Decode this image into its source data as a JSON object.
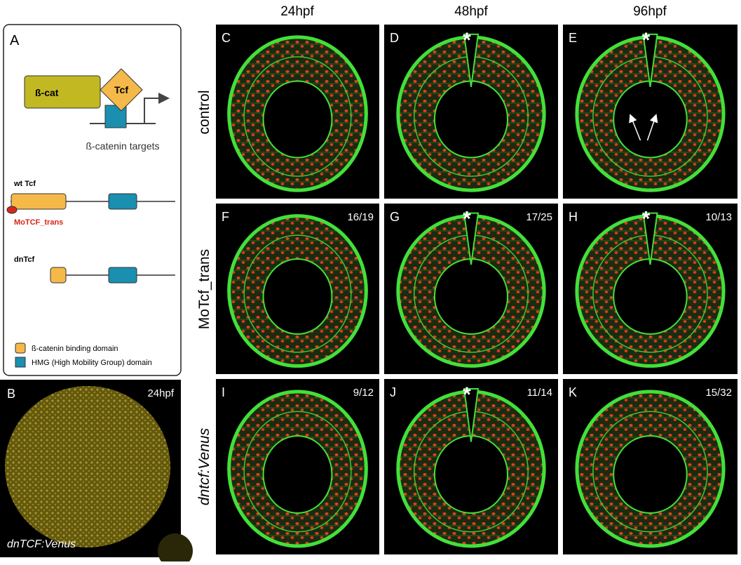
{
  "columns": [
    "24hpf",
    "48hpf",
    "96hpf"
  ],
  "rows": [
    "control",
    "MoTcf_trans",
    "dntcf:Venus"
  ],
  "panels": [
    {
      "letter": "C"
    },
    {
      "letter": "D",
      "mark": "*"
    },
    {
      "letter": "E",
      "mark": "*"
    },
    {
      "letter": "F",
      "count": "16/19"
    },
    {
      "letter": "G",
      "count": "17/25",
      "mark": "*"
    },
    {
      "letter": "H",
      "count": "10/13",
      "mark": "*"
    },
    {
      "letter": "I",
      "count": "9/12"
    },
    {
      "letter": "J",
      "count": "11/14",
      "mark": "*"
    },
    {
      "letter": "K",
      "count": "15/32"
    }
  ],
  "panel_a": {
    "letter": "A",
    "beta_cat": "ß-cat",
    "tcf": "Tcf",
    "targets": "ß-catenin targets",
    "wt_tcf": "wt Tcf",
    "mo_label": "MoTCF_trans",
    "dn_tcf": "dnTcf",
    "legend": [
      "ß-catenin binding domain",
      "HMG (High Mobility Group) domain"
    ]
  },
  "panel_b": {
    "letter": "B",
    "stage": "24hpf",
    "label": "dnTCF:Venus"
  }
}
